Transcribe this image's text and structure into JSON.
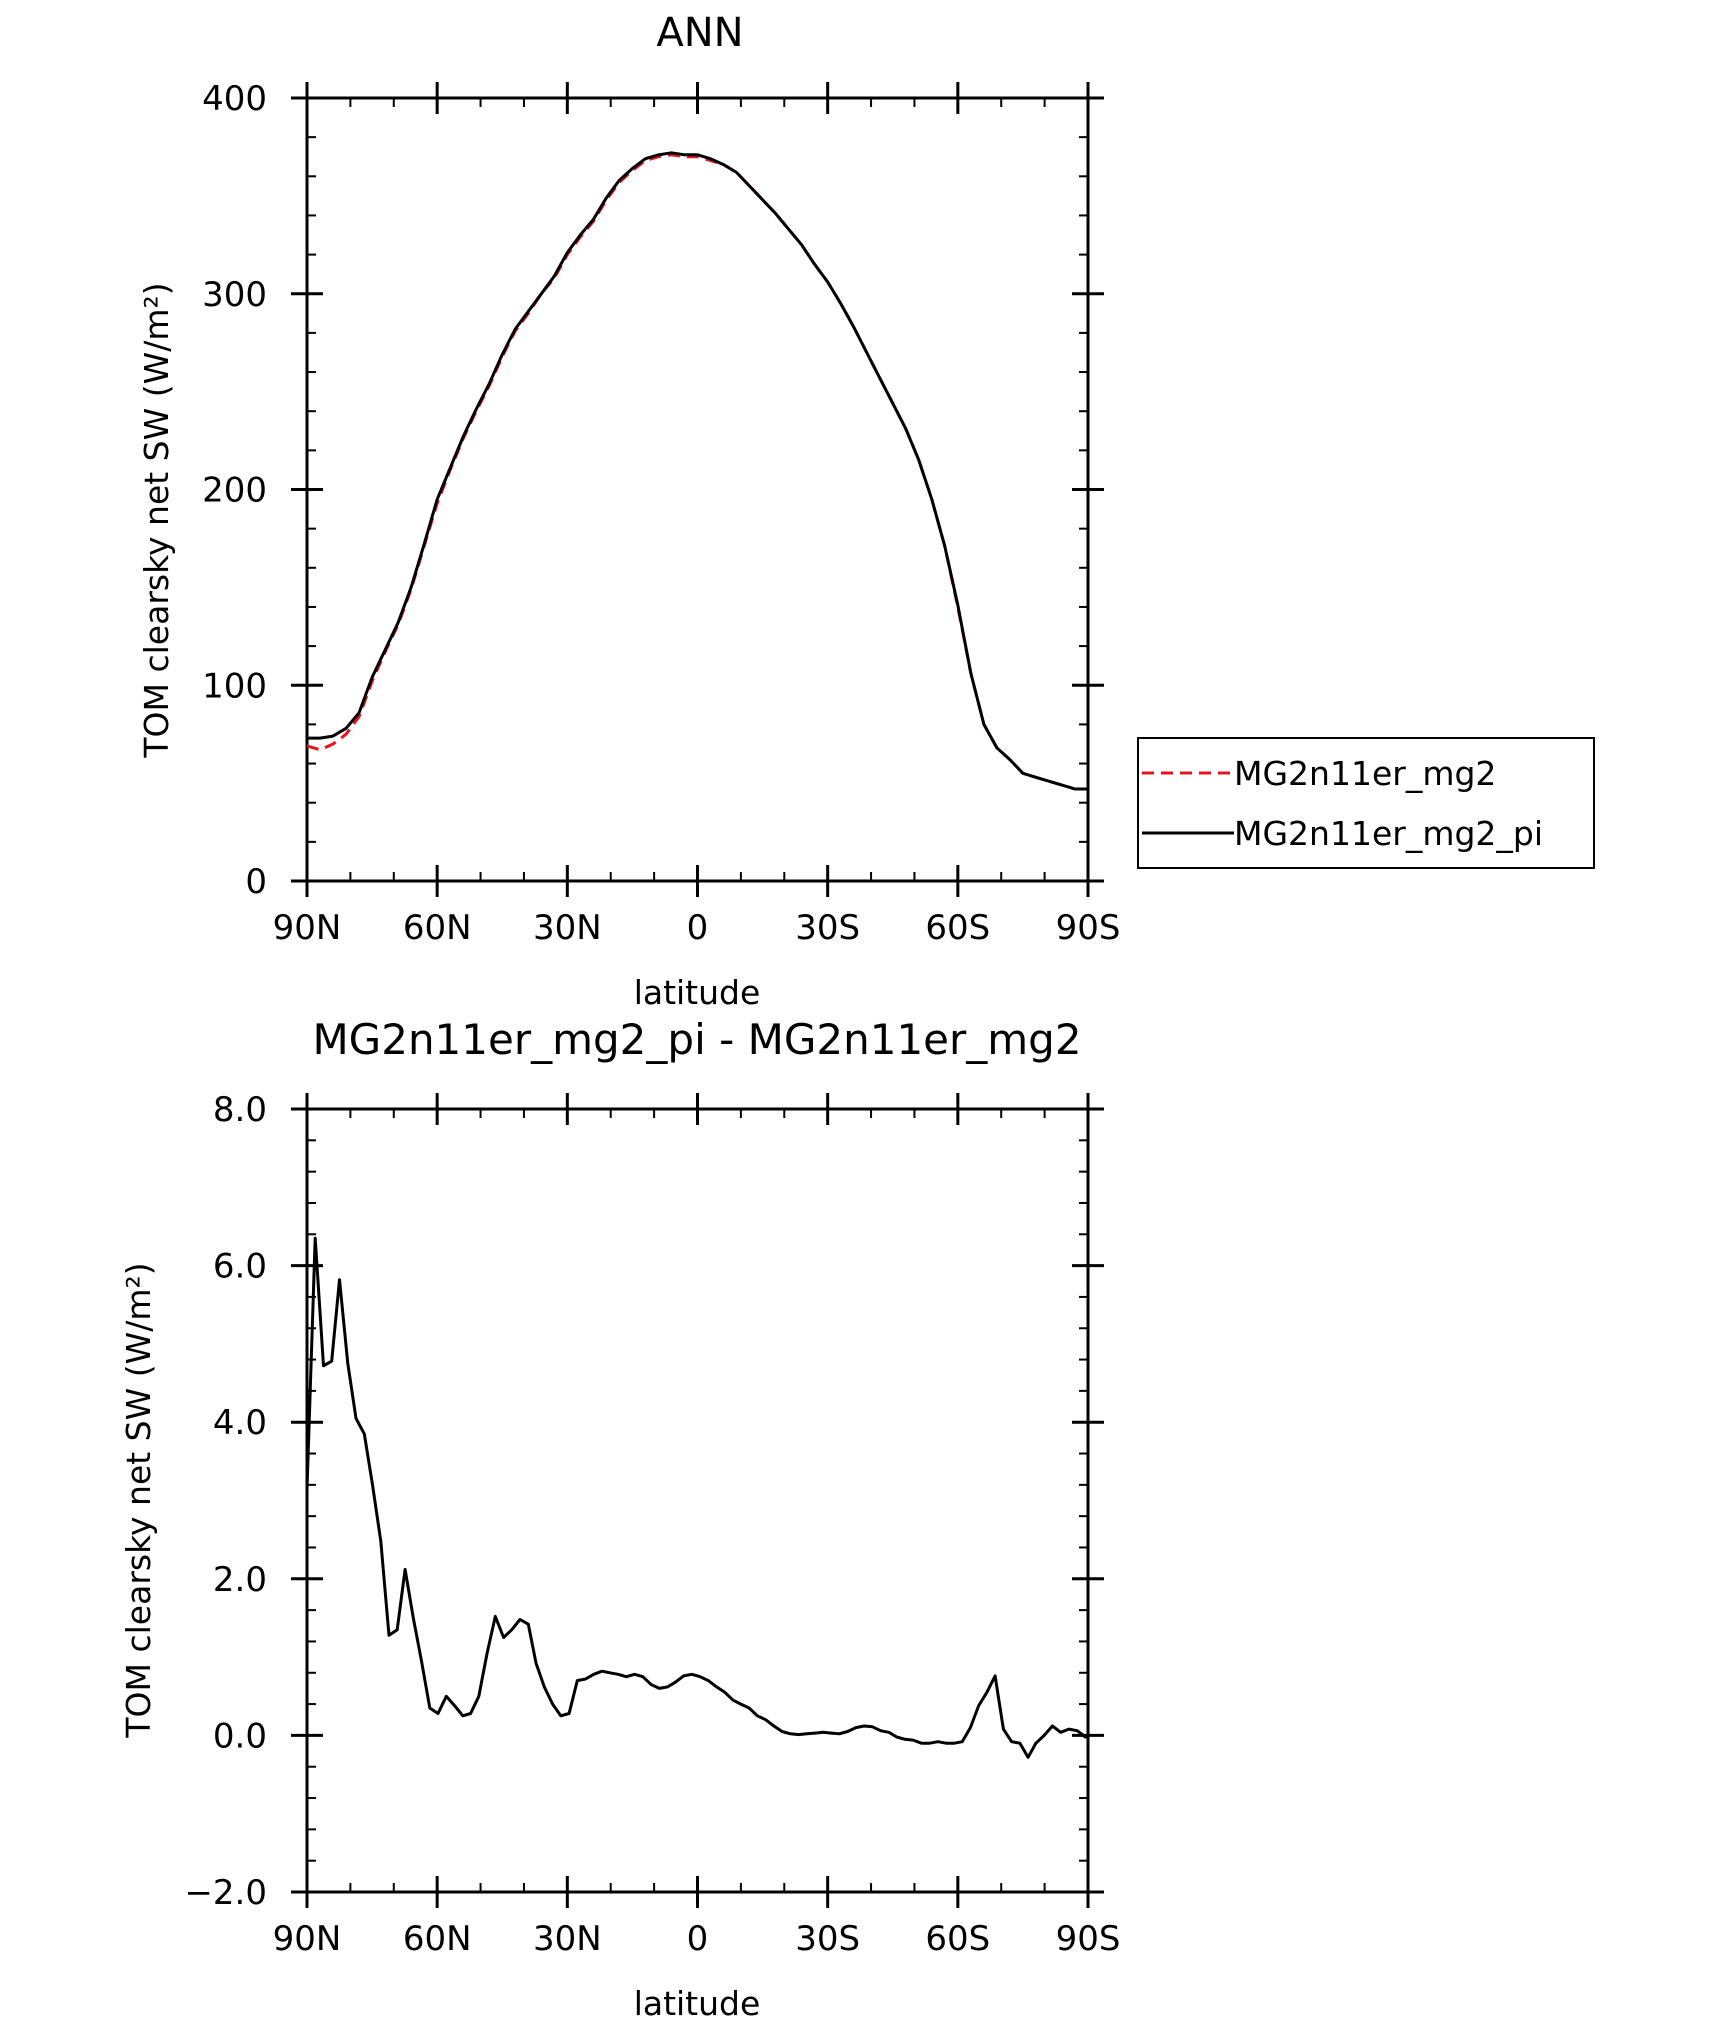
{
  "chart_data": [
    {
      "type": "line",
      "title": "ANN",
      "xlabel": "latitude",
      "ylabel": "TOM clearsky net SW (W/m²)",
      "xlim": [
        90,
        -90
      ],
      "ylim": [
        0,
        400
      ],
      "x_ticks": [
        {
          "value": 90,
          "label": "90N"
        },
        {
          "value": 60,
          "label": "60N"
        },
        {
          "value": 30,
          "label": "30N"
        },
        {
          "value": 0,
          "label": "0"
        },
        {
          "value": -30,
          "label": "30S"
        },
        {
          "value": -60,
          "label": "60S"
        },
        {
          "value": -90,
          "label": "90S"
        }
      ],
      "y_ticks": [
        {
          "value": 0,
          "label": "0"
        },
        {
          "value": 100,
          "label": "100"
        },
        {
          "value": 200,
          "label": "200"
        },
        {
          "value": 300,
          "label": "300"
        },
        {
          "value": 400,
          "label": "400"
        }
      ],
      "legend": {
        "placement": "right-outside",
        "entries": [
          "MG2n11er_mg2",
          "MG2n11er_mg2_pi"
        ]
      },
      "x": [
        90,
        87,
        84,
        81,
        78,
        75,
        72,
        69,
        66,
        63,
        60,
        57,
        54,
        51,
        48,
        45,
        42,
        39,
        36,
        33,
        30,
        27,
        24,
        21,
        18,
        15,
        12,
        9,
        6,
        3,
        0,
        -3,
        -6,
        -9,
        -12,
        -15,
        -18,
        -21,
        -24,
        -27,
        -30,
        -33,
        -36,
        -39,
        -42,
        -45,
        -48,
        -51,
        -54,
        -57,
        -60,
        -63,
        -66,
        -69,
        -72,
        -75,
        -78,
        -81,
        -84,
        -87,
        -90
      ],
      "series": [
        {
          "name": "MG2n11er_mg2",
          "color": "#e8141c",
          "dash": "dashed",
          "values": [
            69,
            67,
            70,
            75,
            84,
            102,
            117,
            131,
            149,
            171,
            193,
            210,
            226,
            240,
            253,
            268,
            281,
            290,
            300,
            308,
            320,
            329,
            337,
            348,
            357,
            363,
            368,
            370,
            371,
            370,
            370,
            368,
            366,
            362,
            355,
            348,
            341,
            333,
            325,
            315,
            306,
            295,
            283,
            270,
            257,
            244,
            231,
            215,
            195,
            171,
            140,
            106,
            80,
            68,
            62,
            55,
            53,
            51,
            49,
            47,
            47
          ]
        },
        {
          "name": "MG2n11er_mg2_pi",
          "color": "#000000",
          "dash": "solid",
          "values": [
            73,
            73,
            74,
            78,
            86,
            104,
            118,
            132,
            150,
            172,
            195,
            211,
            227,
            241,
            254,
            269,
            282,
            291,
            300,
            309,
            321,
            330,
            338,
            349,
            358,
            364,
            369,
            371,
            372,
            371,
            371,
            369,
            366,
            362,
            355,
            348,
            341,
            333,
            325,
            315,
            306,
            295,
            283,
            270,
            257,
            244,
            231,
            215,
            195,
            171,
            141,
            106,
            80,
            68,
            62,
            55,
            53,
            51,
            49,
            47,
            47
          ]
        }
      ]
    },
    {
      "type": "line",
      "title": "MG2n11er_mg2_pi - MG2n11er_mg2",
      "xlabel": "latitude",
      "ylabel": "TOM clearsky net SW (W/m²)",
      "xlim": [
        90,
        -90
      ],
      "ylim": [
        -2,
        8
      ],
      "x_ticks": [
        {
          "value": 90,
          "label": "90N"
        },
        {
          "value": 60,
          "label": "60N"
        },
        {
          "value": 30,
          "label": "30N"
        },
        {
          "value": 0,
          "label": "0"
        },
        {
          "value": -30,
          "label": "30S"
        },
        {
          "value": -60,
          "label": "60S"
        },
        {
          "value": -90,
          "label": "90S"
        }
      ],
      "y_ticks": [
        {
          "value": -2,
          "label": "−2.0"
        },
        {
          "value": 0,
          "label": "0.0"
        },
        {
          "value": 2,
          "label": "2.0"
        },
        {
          "value": 4,
          "label": "4.0"
        },
        {
          "value": 6,
          "label": "6.0"
        },
        {
          "value": 8,
          "label": "8.0"
        }
      ],
      "x": [
        90,
        88.1,
        86.2,
        84.3,
        82.5,
        80.6,
        78.7,
        76.8,
        74.9,
        73.0,
        71.1,
        69.2,
        67.4,
        65.5,
        63.6,
        61.7,
        59.8,
        57.9,
        56.0,
        54.1,
        52.3,
        50.4,
        48.5,
        46.6,
        44.7,
        42.8,
        40.9,
        39.0,
        37.2,
        35.3,
        33.4,
        31.5,
        29.6,
        27.7,
        25.8,
        23.9,
        22.0,
        20.2,
        18.3,
        16.4,
        14.5,
        12.6,
        10.7,
        8.8,
        6.9,
        5.1,
        3.2,
        1.3,
        -0.6,
        -2.5,
        -4.4,
        -6.3,
        -8.2,
        -10.0,
        -11.9,
        -13.8,
        -15.7,
        -17.6,
        -19.5,
        -21.4,
        -23.3,
        -25.2,
        -27.1,
        -29.0,
        -30.8,
        -32.7,
        -34.6,
        -36.5,
        -38.4,
        -40.3,
        -42.2,
        -44.1,
        -45.9,
        -47.8,
        -49.7,
        -51.6,
        -53.5,
        -55.4,
        -57.3,
        -59.2,
        -61.0,
        -62.9,
        -64.8,
        -66.7,
        -68.6,
        -70.5,
        -72.4,
        -74.3,
        -76.2,
        -78.0,
        -79.9,
        -81.8,
        -83.7,
        -85.6,
        -87.5,
        -89.4,
        -90
      ],
      "series": [
        {
          "name": "MG2n11er_mg2_pi - MG2n11er_mg2",
          "color": "#000000",
          "dash": "solid",
          "values": [
            3.15,
            6.35,
            4.72,
            4.78,
            5.82,
            4.75,
            4.05,
            3.85,
            3.2,
            2.48,
            1.28,
            1.35,
            2.12,
            1.5,
            0.95,
            0.35,
            0.28,
            0.5,
            0.38,
            0.25,
            0.28,
            0.5,
            1.05,
            1.52,
            1.25,
            1.35,
            1.48,
            1.42,
            0.92,
            0.62,
            0.4,
            0.25,
            0.28,
            0.7,
            0.72,
            0.78,
            0.82,
            0.8,
            0.78,
            0.75,
            0.78,
            0.75,
            0.65,
            0.6,
            0.62,
            0.68,
            0.76,
            0.78,
            0.75,
            0.7,
            0.62,
            0.55,
            0.45,
            0.4,
            0.35,
            0.25,
            0.2,
            0.12,
            0.05,
            0.02,
            0.01,
            0.02,
            0.03,
            0.04,
            0.03,
            0.02,
            0.05,
            0.1,
            0.12,
            0.11,
            0.06,
            0.04,
            -0.02,
            -0.05,
            -0.06,
            -0.1,
            -0.1,
            -0.08,
            -0.1,
            -0.1,
            -0.08,
            0.1,
            0.38,
            0.55,
            0.76,
            0.08,
            -0.08,
            -0.1,
            -0.28,
            -0.1,
            0.0,
            0.12,
            0.04,
            0.08,
            0.06,
            -0.02,
            -0.02
          ]
        }
      ]
    }
  ]
}
